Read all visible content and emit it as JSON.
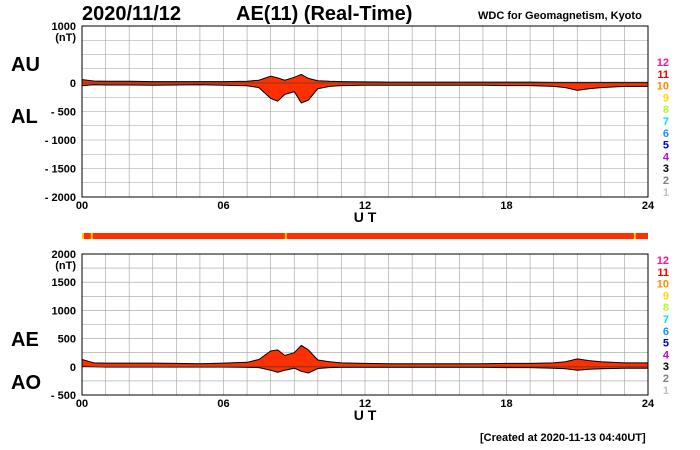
{
  "header": {
    "date": "2020/11/12",
    "title": "AE(11) (Real-Time)",
    "source": "WDC for Geomagnetism, Kyoto"
  },
  "footer": {
    "created": "[Created at 2020-11-13 04:40UT]"
  },
  "colors": {
    "fill": "#ff3000",
    "outline": "#000000",
    "grid": "#a0a0a0",
    "strip": "#ff3000",
    "strip_mark": "#ffcc00"
  },
  "station_legend": [
    {
      "label": "12",
      "color": "#ff1493"
    },
    {
      "label": "11",
      "color": "#ff0000"
    },
    {
      "label": "10",
      "color": "#ff8c00"
    },
    {
      "label": "9",
      "color": "#ffd700"
    },
    {
      "label": "8",
      "color": "#adff2f"
    },
    {
      "label": "7",
      "color": "#00e5ee"
    },
    {
      "label": "6",
      "color": "#1e90ff"
    },
    {
      "label": "5",
      "color": "#0000cd"
    },
    {
      "label": "4",
      "color": "#cc00cc"
    },
    {
      "label": "3",
      "color": "#000000"
    },
    {
      "label": "2",
      "color": "#808080"
    },
    {
      "label": "1",
      "color": "#c0c0c0"
    }
  ],
  "chart_data": [
    {
      "type": "area",
      "panel": "AU/AL",
      "upper_label": "AU",
      "lower_label": "AL",
      "ylabel": "(nT)",
      "xlabel": "U T",
      "ylim": [
        -2000,
        1000
      ],
      "yticks": [
        1000,
        0,
        -500,
        -1000,
        -1500,
        -2000
      ],
      "ytick_labels": [
        "1000",
        "0",
        "- 500",
        "- 1000",
        "- 1500",
        "- 2000"
      ],
      "xlim": [
        0,
        24
      ],
      "xticks": [
        0,
        6,
        12,
        18,
        24
      ],
      "xtick_labels": [
        "00",
        "06",
        "12",
        "18",
        "24"
      ],
      "grid": true,
      "x": [
        0,
        0.5,
        1,
        2,
        3,
        4,
        5,
        6,
        7,
        7.5,
        8,
        8.3,
        8.6,
        9,
        9.3,
        9.6,
        10,
        10.5,
        11,
        12,
        13,
        14,
        15,
        16,
        17,
        18,
        19,
        20,
        20.5,
        21,
        21.5,
        22,
        23,
        24
      ],
      "series": [
        {
          "name": "AU",
          "values": [
            60,
            35,
            30,
            30,
            25,
            25,
            25,
            25,
            30,
            50,
            120,
            90,
            50,
            100,
            150,
            80,
            40,
            30,
            25,
            20,
            15,
            15,
            15,
            15,
            15,
            15,
            15,
            10,
            10,
            10,
            10,
            10,
            10,
            10
          ]
        },
        {
          "name": "AL",
          "values": [
            -50,
            -30,
            -35,
            -35,
            -40,
            -35,
            -30,
            -40,
            -50,
            -80,
            -270,
            -320,
            -200,
            -150,
            -350,
            -300,
            -100,
            -60,
            -45,
            -40,
            -40,
            -40,
            -40,
            -40,
            -40,
            -45,
            -45,
            -60,
            -80,
            -130,
            -100,
            -80,
            -60,
            -60
          ]
        }
      ]
    },
    {
      "type": "area",
      "panel": "AE/AO",
      "upper_label": "AE",
      "lower_label": "AO",
      "ylabel": "(nT)",
      "xlabel": "U T",
      "ylim": [
        -500,
        2000
      ],
      "yticks": [
        2000,
        1500,
        1000,
        500,
        0,
        -500
      ],
      "ytick_labels": [
        "2000",
        "1500",
        "1000",
        "500",
        "0",
        "- 500"
      ],
      "xlim": [
        0,
        24
      ],
      "xticks": [
        0,
        6,
        12,
        18,
        24
      ],
      "xtick_labels": [
        "00",
        "06",
        "12",
        "18",
        "24"
      ],
      "grid": true,
      "x": [
        0,
        0.5,
        1,
        2,
        3,
        4,
        5,
        6,
        7,
        7.5,
        8,
        8.3,
        8.6,
        9,
        9.3,
        9.6,
        10,
        10.5,
        11,
        12,
        13,
        14,
        15,
        16,
        17,
        18,
        19,
        20,
        20.5,
        21,
        21.5,
        22,
        23,
        24
      ],
      "series": [
        {
          "name": "AE",
          "values": [
            130,
            70,
            65,
            65,
            65,
            60,
            55,
            65,
            80,
            130,
            280,
            300,
            200,
            250,
            380,
            300,
            120,
            90,
            70,
            60,
            55,
            55,
            55,
            55,
            55,
            60,
            60,
            70,
            90,
            140,
            110,
            90,
            70,
            70
          ]
        },
        {
          "name": "AO",
          "values": [
            10,
            0,
            -5,
            -5,
            -5,
            -5,
            -5,
            -5,
            -10,
            -15,
            -60,
            -100,
            -60,
            -25,
            -80,
            -110,
            -30,
            -15,
            -10,
            -10,
            -10,
            -10,
            -10,
            -10,
            -10,
            -15,
            -15,
            -25,
            -35,
            -60,
            -45,
            -35,
            -25,
            -25
          ]
        }
      ]
    }
  ]
}
